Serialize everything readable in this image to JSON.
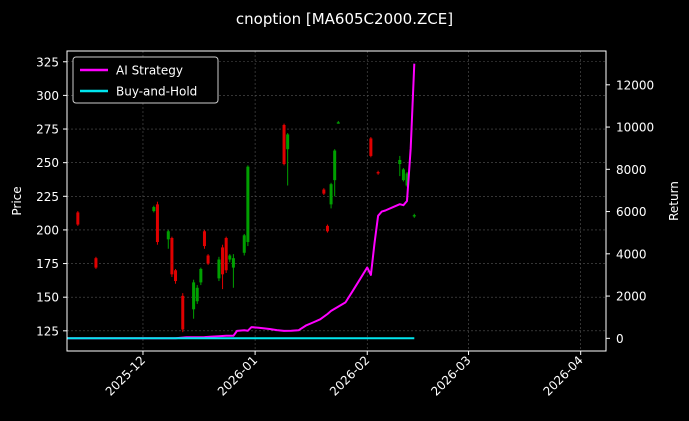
{
  "chart_data": {
    "type": "candlestick",
    "title": "cnoption [MA605C2000.ZCE]",
    "ylabel": "Price",
    "y2label": "Return",
    "y_ticks": [
      125,
      150,
      175,
      200,
      225,
      250,
      275,
      300,
      325
    ],
    "y2_ticks": [
      0,
      2000,
      4000,
      6000,
      8000,
      10000,
      12000
    ],
    "x_ticks": [
      "2025-12",
      "2026-01",
      "2026-02",
      "2026-03",
      "2026-04"
    ],
    "ylim": [
      110,
      333
    ],
    "y2lim": [
      -600,
      13600
    ],
    "xlim": [
      "2025-11-10",
      "2026-04-08"
    ],
    "grid": true,
    "legend_position": "top-left",
    "colors": {
      "ai_strategy": "#ff00ff",
      "buy_and_hold": "#00e5ee",
      "up_candle": "#00a000",
      "down_candle": "#e00000"
    },
    "series": [
      {
        "name": "AI Strategy",
        "axis": "right",
        "points": [
          [
            "2025-11-10",
            0
          ],
          [
            "2025-12-10",
            0
          ],
          [
            "2025-12-13",
            50
          ],
          [
            "2025-12-18",
            60
          ],
          [
            "2025-12-20",
            80
          ],
          [
            "2025-12-22",
            100
          ],
          [
            "2025-12-24",
            120
          ],
          [
            "2025-12-26",
            120
          ],
          [
            "2025-12-27",
            350
          ],
          [
            "2025-12-29",
            380
          ],
          [
            "2025-12-30",
            360
          ],
          [
            "2025-12-31",
            530
          ],
          [
            "2026-01-02",
            500
          ],
          [
            "2026-01-05",
            440
          ],
          [
            "2026-01-07",
            390
          ],
          [
            "2026-01-09",
            350
          ],
          [
            "2026-01-11",
            360
          ],
          [
            "2026-01-13",
            380
          ],
          [
            "2026-01-15",
            600
          ],
          [
            "2026-01-17",
            750
          ],
          [
            "2026-01-19",
            900
          ],
          [
            "2026-01-21",
            1150
          ],
          [
            "2026-01-22",
            1300
          ],
          [
            "2026-01-24",
            1500
          ],
          [
            "2026-01-26",
            1700
          ],
          [
            "2026-01-28",
            2250
          ],
          [
            "2026-01-30",
            2800
          ],
          [
            "2026-02-01",
            3350
          ],
          [
            "2026-02-02",
            3000
          ],
          [
            "2026-02-03",
            4500
          ],
          [
            "2026-02-04",
            5800
          ],
          [
            "2026-02-05",
            6000
          ],
          [
            "2026-02-06",
            6050
          ],
          [
            "2026-02-08",
            6200
          ],
          [
            "2026-02-10",
            6350
          ],
          [
            "2026-02-11",
            6300
          ],
          [
            "2026-02-12",
            6500
          ],
          [
            "2026-02-13",
            9000
          ],
          [
            "2026-02-14",
            13000
          ]
        ]
      },
      {
        "name": "Buy-and-Hold",
        "axis": "right",
        "points": [
          [
            "2025-11-10",
            0
          ],
          [
            "2026-02-14",
            0
          ]
        ]
      }
    ],
    "candles": [
      {
        "date": "2025-11-13",
        "open": 213,
        "close": 204,
        "high": 214,
        "low": 203
      },
      {
        "date": "2025-11-18",
        "open": 179,
        "close": 172,
        "high": 180,
        "low": 171
      },
      {
        "date": "2025-12-04",
        "open": 214,
        "close": 217,
        "high": 218,
        "low": 213
      },
      {
        "date": "2025-12-05",
        "open": 219,
        "close": 191,
        "high": 221,
        "low": 189
      },
      {
        "date": "2025-12-08",
        "open": 193,
        "close": 199,
        "high": 200,
        "low": 186
      },
      {
        "date": "2025-12-09",
        "open": 194,
        "close": 167,
        "high": 195,
        "low": 165
      },
      {
        "date": "2025-12-10",
        "open": 170,
        "close": 162,
        "high": 171,
        "low": 160
      },
      {
        "date": "2025-12-12",
        "open": 151,
        "close": 126,
        "high": 153,
        "low": 124
      },
      {
        "date": "2025-12-15",
        "open": 141,
        "close": 161,
        "high": 163,
        "low": 134
      },
      {
        "date": "2025-12-16",
        "open": 147,
        "close": 157,
        "high": 159,
        "low": 145
      },
      {
        "date": "2025-12-17",
        "open": 161,
        "close": 171,
        "high": 172,
        "low": 159
      },
      {
        "date": "2025-12-18",
        "open": 199,
        "close": 188,
        "high": 200,
        "low": 186
      },
      {
        "date": "2025-12-19",
        "open": 181,
        "close": 175,
        "high": 182,
        "low": 174
      },
      {
        "date": "2025-12-22",
        "open": 164,
        "close": 178,
        "high": 180,
        "low": 162
      },
      {
        "date": "2025-12-23",
        "open": 187,
        "close": 167,
        "high": 189,
        "low": 156
      },
      {
        "date": "2025-12-24",
        "open": 194,
        "close": 170,
        "high": 195,
        "low": 168
      },
      {
        "date": "2025-12-25",
        "open": 178,
        "close": 181,
        "high": 182,
        "low": 176
      },
      {
        "date": "2025-12-26",
        "open": 172,
        "close": 179,
        "high": 182,
        "low": 157
      },
      {
        "date": "2025-12-29",
        "open": 183,
        "close": 196,
        "high": 197,
        "low": 181
      },
      {
        "date": "2025-12-30",
        "open": 191,
        "close": 247,
        "high": 248,
        "low": 188
      },
      {
        "date": "2026-01-09",
        "open": 278,
        "close": 249,
        "high": 279,
        "low": 248
      },
      {
        "date": "2026-01-10",
        "open": 260,
        "close": 271,
        "high": 272,
        "low": 233
      },
      {
        "date": "2026-01-20",
        "open": 230,
        "close": 227,
        "high": 231,
        "low": 226
      },
      {
        "date": "2026-01-21",
        "open": 203,
        "close": 199,
        "high": 204,
        "low": 198
      },
      {
        "date": "2026-01-22",
        "open": 219,
        "close": 234,
        "high": 235,
        "low": 216
      },
      {
        "date": "2026-01-23",
        "open": 237,
        "close": 259,
        "high": 260,
        "low": 225
      },
      {
        "date": "2026-01-24",
        "open": 279,
        "close": 280,
        "high": 281,
        "low": 279
      },
      {
        "date": "2026-02-02",
        "open": 268,
        "close": 255,
        "high": 269,
        "low": 254
      },
      {
        "date": "2026-02-04",
        "open": 243,
        "close": 242,
        "high": 244,
        "low": 241
      },
      {
        "date": "2026-02-10",
        "open": 249,
        "close": 252,
        "high": 255,
        "low": 240
      },
      {
        "date": "2026-02-11",
        "open": 237,
        "close": 245,
        "high": 246,
        "low": 236
      },
      {
        "date": "2026-02-12",
        "open": 233,
        "close": 242,
        "high": 243,
        "low": 232
      },
      {
        "date": "2026-02-14",
        "open": 210,
        "close": 211,
        "high": 212,
        "low": 209
      }
    ]
  }
}
